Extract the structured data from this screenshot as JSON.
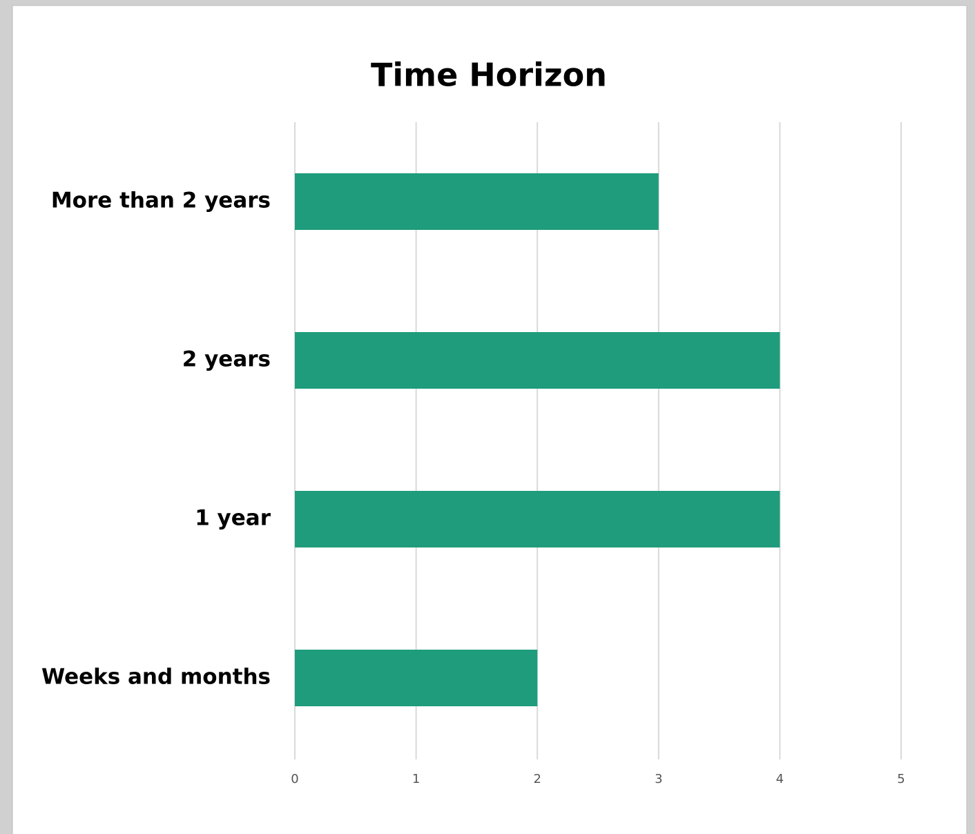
{
  "chart_data": {
    "type": "hbar",
    "title": "Time Horizon",
    "categories": [
      "More than 2 years",
      "2 years",
      "1 year",
      "Weeks and months"
    ],
    "values": [
      3,
      4,
      4,
      2
    ],
    "color": "#1f9c7c",
    "xlim": [
      0,
      5
    ],
    "xticks": [
      0,
      1,
      2,
      3,
      4,
      5
    ],
    "grid": true
  }
}
